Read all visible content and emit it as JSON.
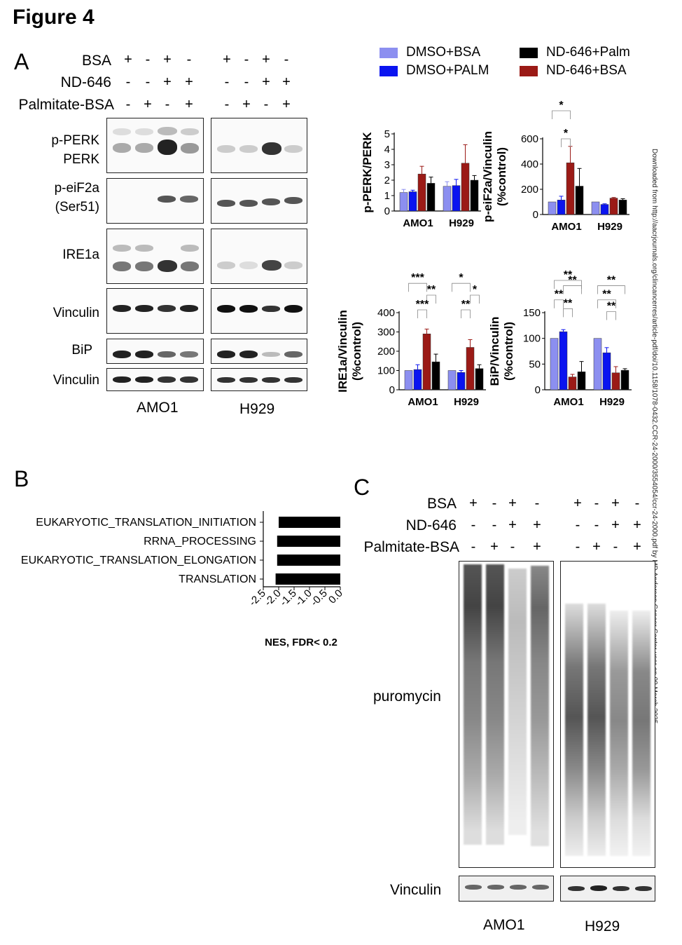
{
  "figure_title": "Figure 4",
  "panels": {
    "a": "A",
    "b": "B",
    "c": "C"
  },
  "watermark": "Downloaded from http://aacrjournals.org/clincancerres/article-pdf/doi/10.1158/1078-0432.CCR-24-2000/3554054/ccr-24-2000.pdf by MD Anderson Cancer Center user on 09 March 2025",
  "panel_a": {
    "conditions": [
      "BSA",
      "ND-646",
      "Palmitate-BSA"
    ],
    "signs_row1": [
      "+",
      "-",
      "+",
      "-",
      "+",
      "-",
      "+",
      "-"
    ],
    "signs_row2": [
      "-",
      "-",
      "+",
      "+",
      "-",
      "-",
      "+",
      "+"
    ],
    "signs_row3": [
      "-",
      "+",
      "-",
      "+",
      "-",
      "+",
      "-",
      "+"
    ],
    "blot_labels": {
      "pperk": "p-PERK",
      "perk": "PERK",
      "peif2a": "p-eiF2a",
      "ser51": "(Ser51)",
      "ire1a": "IRE1a",
      "vinculin1": "Vinculin",
      "bip": "BiP",
      "vinculin2": "Vinculin"
    },
    "cell_lines": [
      "AMO1",
      "H929"
    ]
  },
  "panel_c": {
    "conditions": [
      "BSA",
      "ND-646",
      "Palmitate-BSA"
    ],
    "signs_row1": [
      "+",
      "-",
      "+",
      "-",
      "+",
      "-",
      "+",
      "-"
    ],
    "signs_row2": [
      "-",
      "-",
      "+",
      "+",
      "-",
      "-",
      "+",
      "+"
    ],
    "signs_row3": [
      "-",
      "+",
      "-",
      "+",
      "-",
      "+",
      "-",
      "+"
    ],
    "blot_labels": {
      "puromycin": "puromycin",
      "vinculin": "Vinculin"
    },
    "cell_lines": [
      "AMO1",
      "H929"
    ]
  },
  "legend": {
    "items": [
      {
        "label": "DMSO+BSA",
        "color": "#8c8ff0"
      },
      {
        "label": "DMSO+PALM",
        "color": "#0a14f0"
      },
      {
        "label": "ND-646+Palm",
        "color": "#000000"
      },
      {
        "label": "ND-646+BSA",
        "color": "#9b1a16"
      }
    ]
  },
  "chart_data": [
    {
      "type": "bar",
      "ylabel": "p-PERK/PERK",
      "categories": [
        "AMO1",
        "H929"
      ],
      "yticks": [
        "0",
        "1",
        "2",
        "3",
        "4",
        "5"
      ],
      "ylim": [
        0,
        5
      ],
      "series": [
        {
          "name": "DMSO+BSA",
          "values": [
            1.2,
            1.6
          ],
          "errors": [
            0.2,
            0.3
          ]
        },
        {
          "name": "DMSO+PALM",
          "values": [
            1.25,
            1.65
          ],
          "errors": [
            0.1,
            0.4
          ]
        },
        {
          "name": "ND-646+BSA",
          "values": [
            2.4,
            3.1
          ],
          "errors": [
            0.5,
            1.2
          ]
        },
        {
          "name": "ND-646+Palm",
          "values": [
            1.8,
            2.0
          ],
          "errors": [
            0.4,
            0.3
          ]
        }
      ],
      "significance": []
    },
    {
      "type": "bar",
      "ylabel": "p-eiF2a/Vinculin",
      "ylabel2": "(%control)",
      "categories": [
        "AMO1",
        "H929"
      ],
      "yticks": [
        "0",
        "200",
        "400",
        "600"
      ],
      "ylim": [
        0,
        600
      ],
      "series": [
        {
          "name": "DMSO+BSA",
          "values": [
            100,
            100
          ],
          "errors": [
            0,
            0
          ]
        },
        {
          "name": "DMSO+PALM",
          "values": [
            115,
            80
          ],
          "errors": [
            30,
            5
          ]
        },
        {
          "name": "ND-646+BSA",
          "values": [
            410,
            130
          ],
          "errors": [
            130,
            5
          ]
        },
        {
          "name": "ND-646+Palm",
          "values": [
            225,
            115
          ],
          "errors": [
            140,
            10
          ]
        }
      ],
      "significance": [
        "*",
        "*"
      ]
    },
    {
      "type": "bar",
      "ylabel": "IRE1a/Vinculin",
      "ylabel2": "(%control)",
      "categories": [
        "AMO1",
        "H929"
      ],
      "yticks": [
        "0",
        "100",
        "200",
        "300",
        "400"
      ],
      "ylim": [
        0,
        400
      ],
      "series": [
        {
          "name": "DMSO+BSA",
          "values": [
            100,
            100
          ],
          "errors": [
            0,
            0
          ]
        },
        {
          "name": "DMSO+PALM",
          "values": [
            105,
            90
          ],
          "errors": [
            25,
            10
          ]
        },
        {
          "name": "ND-646+BSA",
          "values": [
            290,
            220
          ],
          "errors": [
            25,
            40
          ]
        },
        {
          "name": "ND-646+Palm",
          "values": [
            145,
            110
          ],
          "errors": [
            40,
            20
          ]
        }
      ],
      "significance": [
        "***",
        "**",
        "***",
        "*",
        "*",
        "**"
      ]
    },
    {
      "type": "bar",
      "ylabel": "BiP/Vinculin",
      "ylabel2": "(%control)",
      "categories": [
        "AMO1",
        "H929"
      ],
      "yticks": [
        "0",
        "50",
        "100",
        "150"
      ],
      "ylim": [
        0,
        150
      ],
      "series": [
        {
          "name": "DMSO+BSA",
          "values": [
            100,
            100
          ],
          "errors": [
            0,
            0
          ]
        },
        {
          "name": "DMSO+PALM",
          "values": [
            113,
            72
          ],
          "errors": [
            4,
            10
          ]
        },
        {
          "name": "ND-646+BSA",
          "values": [
            25,
            33
          ],
          "errors": [
            5,
            12
          ]
        },
        {
          "name": "ND-646+Palm",
          "values": [
            35,
            38
          ],
          "errors": [
            20,
            3
          ]
        }
      ],
      "significance": [
        "**",
        "**",
        "**",
        "**",
        "**",
        "**",
        "**",
        "*"
      ]
    },
    {
      "type": "bar",
      "orientation": "horizontal",
      "categories": [
        "EUKARYOTIC_TRANSLATION_INITIATION",
        "RRNA_PROCESSING",
        "EUKARYOTIC_TRANSLATION_ELONGATION",
        "TRANSLATION"
      ],
      "values": [
        -2.0,
        -2.05,
        -2.05,
        -2.1
      ],
      "xticks": [
        "-2.5",
        "-2.0",
        "-1.5",
        "-1.0",
        "-0.5",
        "0.0"
      ],
      "xlim": [
        -2.5,
        0
      ],
      "xlabel": "NES, FDR< 0.2"
    }
  ]
}
